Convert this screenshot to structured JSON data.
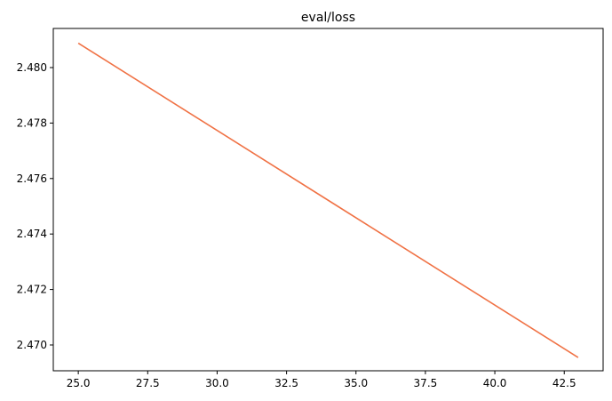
{
  "chart_data": {
    "type": "line",
    "title": "eval/loss",
    "xlabel": "",
    "ylabel": "",
    "xlim": [
      24.1,
      43.9
    ],
    "ylim": [
      2.46907,
      2.48141
    ],
    "x_ticks": [
      25.0,
      27.5,
      30.0,
      32.5,
      35.0,
      37.5,
      40.0,
      42.5
    ],
    "x_tick_labels": [
      "25.0",
      "27.5",
      "30.0",
      "32.5",
      "35.0",
      "37.5",
      "40.0",
      "42.5"
    ],
    "y_ticks": [
      2.47,
      2.472,
      2.474,
      2.476,
      2.478,
      2.48
    ],
    "y_tick_labels": [
      "2.470",
      "2.472",
      "2.474",
      "2.476",
      "2.478",
      "2.480"
    ],
    "grid": false,
    "legend": "none",
    "series": [
      {
        "color": "#f07245",
        "x": [
          25,
          43
        ],
        "y": [
          2.48088,
          2.46955
        ]
      }
    ]
  }
}
